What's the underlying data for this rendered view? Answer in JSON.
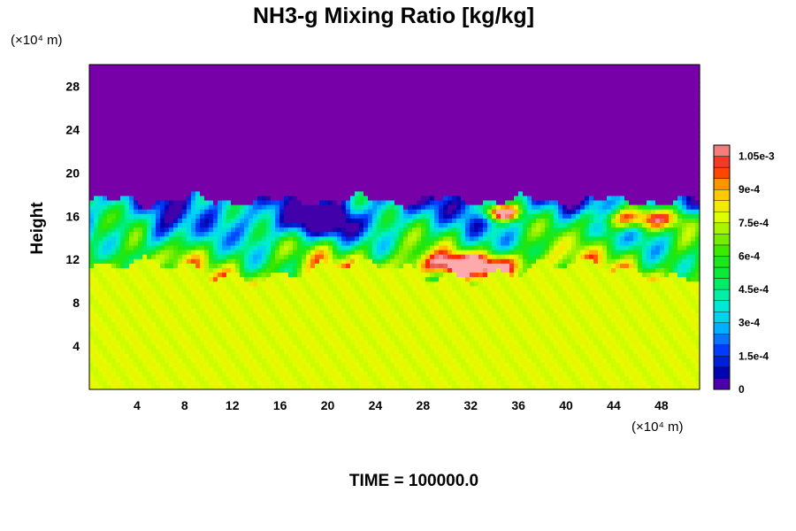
{
  "chart_data": {
    "type": "heatmap",
    "title": "NH3-g Mixing Ratio [kg/kg]",
    "ylabel": "Height",
    "x_unit_label": "(×10⁴ m)",
    "y_unit_label": "(×10⁴ m)",
    "footer": "TIME = 100000.0",
    "xlim": [
      0,
      51.2
    ],
    "ylim": [
      0,
      30
    ],
    "x_ticks": [
      4,
      8,
      12,
      16,
      20,
      24,
      28,
      32,
      36,
      40,
      44,
      48
    ],
    "y_ticks": [
      4,
      8,
      12,
      16,
      20,
      24,
      28
    ],
    "colorbar": {
      "range": [
        0,
        0.0011
      ],
      "tick_values": [
        0,
        0.00015,
        0.0003,
        0.00045,
        0.0006,
        0.00075,
        0.0009,
        0.00105
      ],
      "tick_labels": [
        "0",
        "1.5e-4",
        "3e-4",
        "4.5e-4",
        "6e-4",
        "7.5e-4",
        "9e-4",
        "1.05e-3"
      ]
    },
    "regions": {
      "upper_value": 0,
      "lower_value": 0.00078,
      "mixing_layer_top_y": 17.5,
      "mixing_layer_bottom_y": 11
    }
  }
}
